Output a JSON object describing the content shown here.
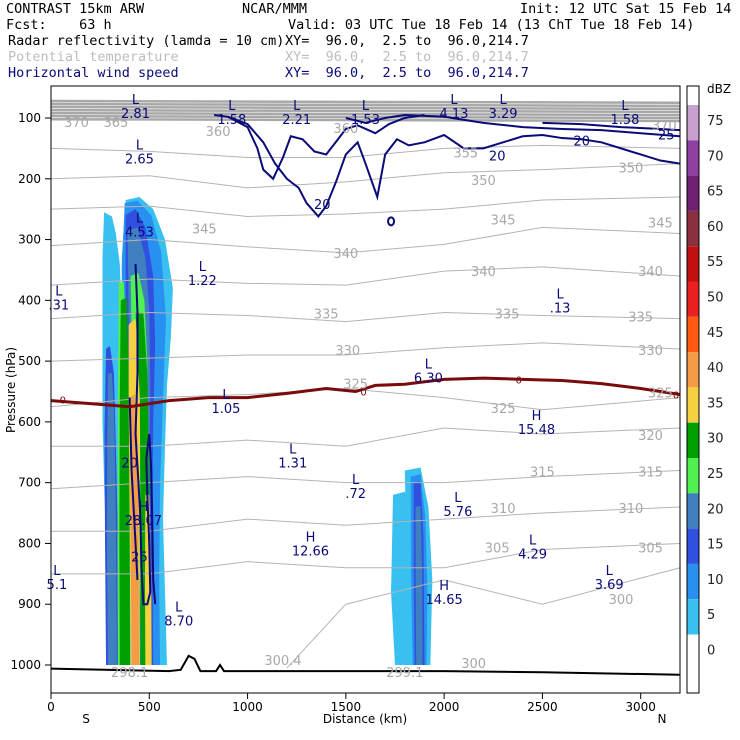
{
  "header": {
    "line1_left": "CONTRAST 15km ARW",
    "line1_mid": "NCAR/MMM",
    "line1_right": "Init: 12 UTC Sat 15 Feb 14",
    "line2_left": "Fcst:    63 h",
    "line2_right": "Valid: 03 UTC Tue 18 Feb 14 (13 ChT Tue 18 Feb 14)",
    "fields": [
      {
        "name": "Radar reflectivity (lamda = 10 cm)",
        "xy": "XY=  96.0,  2.5 to  96.0,214.7",
        "color": "#000000"
      },
      {
        "name": "Potential temperature",
        "xy": "XY=  96.0,  2.5 to  96.0,214.7",
        "color": "#bdbdbd"
      },
      {
        "name": "Horizontal wind speed",
        "xy": "XY=  96.0,  2.5 to  96.0,214.7",
        "color": "#0a0a78"
      }
    ]
  },
  "chart_data": {
    "type": "heatmap",
    "xlabel": "Distance (km)",
    "ylabel": "Pressure (hPa)",
    "x_end_labels": {
      "left": "S",
      "right": "N"
    },
    "xlim": [
      0,
      3200
    ],
    "ylim": [
      1050,
      70
    ],
    "xticks": [
      0,
      500,
      1000,
      1500,
      2000,
      2500,
      3000
    ],
    "yticks": [
      100,
      200,
      300,
      400,
      500,
      600,
      700,
      800,
      900,
      1000
    ],
    "colorbar": {
      "unit": "dBZ",
      "levels": [
        75,
        70,
        65,
        60,
        55,
        50,
        45,
        40,
        35,
        30,
        25,
        20,
        15,
        10,
        5,
        0
      ],
      "colors": [
        "#c8a0d0",
        "#9040a0",
        "#702070",
        "#8b3040",
        "#c01010",
        "#e82020",
        "#ff5a10",
        "#f59a45",
        "#f5d040",
        "#00a000",
        "#50f050",
        "#4080c0",
        "#3050e0",
        "#2890f0",
        "#38c0f0",
        "#80f0f0"
      ]
    },
    "theta_labels": [
      {
        "v": "370",
        "x": 130,
        "p": 115
      },
      {
        "v": "365",
        "x": 330,
        "p": 115
      },
      {
        "v": "360",
        "x": 850,
        "p": 130
      },
      {
        "v": "360",
        "x": 1500,
        "p": 125
      },
      {
        "v": "370",
        "x": 3120,
        "p": 120
      },
      {
        "v": "355",
        "x": 2110,
        "p": 165
      },
      {
        "v": "350",
        "x": 2200,
        "p": 210
      },
      {
        "v": "350",
        "x": 2950,
        "p": 190
      },
      {
        "v": "345",
        "x": 780,
        "p": 290
      },
      {
        "v": "345",
        "x": 2300,
        "p": 275
      },
      {
        "v": "345",
        "x": 3100,
        "p": 280
      },
      {
        "v": "340",
        "x": 1500,
        "p": 330
      },
      {
        "v": "340",
        "x": 2200,
        "p": 360
      },
      {
        "v": "340",
        "x": 3050,
        "p": 360
      },
      {
        "v": "335",
        "x": 1400,
        "p": 430
      },
      {
        "v": "335",
        "x": 2320,
        "p": 430
      },
      {
        "v": "335",
        "x": 3000,
        "p": 435
      },
      {
        "v": "330",
        "x": 1510,
        "p": 490
      },
      {
        "v": "330",
        "x": 3050,
        "p": 490
      },
      {
        "v": "325",
        "x": 1550,
        "p": 545
      },
      {
        "v": "325",
        "x": 2300,
        "p": 585
      },
      {
        "v": "325",
        "x": 3100,
        "p": 560
      },
      {
        "v": "320",
        "x": 3050,
        "p": 630
      },
      {
        "v": "315",
        "x": 2500,
        "p": 690
      },
      {
        "v": "315",
        "x": 3050,
        "p": 690
      },
      {
        "v": "310",
        "x": 2300,
        "p": 750
      },
      {
        "v": "310",
        "x": 2950,
        "p": 750
      },
      {
        "v": "305",
        "x": 2270,
        "p": 815
      },
      {
        "v": "305",
        "x": 3050,
        "p": 815
      },
      {
        "v": "300",
        "x": 2150,
        "p": 1005
      },
      {
        "v": "300",
        "x": 2900,
        "p": 900
      },
      {
        "v": "300.4",
        "x": 1180,
        "p": 1000
      },
      {
        "v": "298.1",
        "x": 400,
        "p": 1020
      },
      {
        "v": "299.1",
        "x": 1800,
        "p": 1020
      }
    ],
    "wind_labels": [
      {
        "v": "20",
        "x": 1380,
        "p": 250
      },
      {
        "v": "20",
        "x": 2270,
        "p": 170
      },
      {
        "v": "20",
        "x": 2700,
        "p": 145
      },
      {
        "v": "25",
        "x": 3130,
        "p": 135
      },
      {
        "v": "20",
        "x": 400,
        "p": 675
      },
      {
        "v": "25",
        "x": 450,
        "p": 830
      }
    ],
    "extrema": [
      {
        "kind": "L",
        "value": "2.81",
        "x": 430,
        "p": 100
      },
      {
        "kind": "L",
        "value": "1.58",
        "x": 920,
        "p": 110
      },
      {
        "kind": "L",
        "value": "2.21",
        "x": 1250,
        "p": 110
      },
      {
        "kind": "L",
        "value": "1.53",
        "x": 1600,
        "p": 110
      },
      {
        "kind": "L",
        "value": "4.13",
        "x": 2050,
        "p": 100
      },
      {
        "kind": "L",
        "value": "3.29",
        "x": 2300,
        "p": 100
      },
      {
        "kind": "L",
        "value": "1.58",
        "x": 2920,
        "p": 110
      },
      {
        "kind": "L",
        "value": "2.65",
        "x": 450,
        "p": 175
      },
      {
        "kind": "L",
        "value": "4.53",
        "x": 450,
        "p": 295
      },
      {
        "kind": "L",
        "value": "1.22",
        "x": 770,
        "p": 375
      },
      {
        "kind": "L",
        "value": ".31",
        "x": 40,
        "p": 415
      },
      {
        "kind": "L",
        "value": ".13",
        "x": 2590,
        "p": 420
      },
      {
        "kind": "L",
        "value": "6.30",
        "x": 1920,
        "p": 535
      },
      {
        "kind": "L",
        "value": "1.05",
        "x": 890,
        "p": 585
      },
      {
        "kind": "H",
        "value": "15.48",
        "x": 2470,
        "p": 620
      },
      {
        "kind": "L",
        "value": "1.31",
        "x": 1230,
        "p": 675
      },
      {
        "kind": "L",
        "value": ".72",
        "x": 1550,
        "p": 725
      },
      {
        "kind": "L",
        "value": "5.76",
        "x": 2070,
        "p": 755
      },
      {
        "kind": "H",
        "value": "28.07",
        "x": 470,
        "p": 770
      },
      {
        "kind": "H",
        "value": "12.66",
        "x": 1320,
        "p": 820
      },
      {
        "kind": "L",
        "value": "4.29",
        "x": 2450,
        "p": 825
      },
      {
        "kind": "L",
        "value": "5.1",
        "x": 30,
        "p": 875
      },
      {
        "kind": "L",
        "value": "3.69",
        "x": 2840,
        "p": 875
      },
      {
        "kind": "H",
        "value": "14.65",
        "x": 2000,
        "p": 900
      },
      {
        "kind": "L",
        "value": "8.70",
        "x": 650,
        "p": 935
      }
    ],
    "zero_label": "0",
    "freezing_level": [
      {
        "x": 0,
        "p": 565
      },
      {
        "x": 200,
        "p": 570
      },
      {
        "x": 400,
        "p": 575
      },
      {
        "x": 600,
        "p": 565
      },
      {
        "x": 800,
        "p": 560
      },
      {
        "x": 1000,
        "p": 560
      },
      {
        "x": 1200,
        "p": 553
      },
      {
        "x": 1400,
        "p": 545
      },
      {
        "x": 1550,
        "p": 550
      },
      {
        "x": 1650,
        "p": 540
      },
      {
        "x": 1800,
        "p": 538
      },
      {
        "x": 2000,
        "p": 530
      },
      {
        "x": 2200,
        "p": 528
      },
      {
        "x": 2400,
        "p": 530
      },
      {
        "x": 2600,
        "p": 532
      },
      {
        "x": 2800,
        "p": 537
      },
      {
        "x": 3000,
        "p": 545
      },
      {
        "x": 3200,
        "p": 555
      }
    ],
    "terrain": [
      {
        "x": 0,
        "p": 1006
      },
      {
        "x": 300,
        "p": 1008
      },
      {
        "x": 600,
        "p": 1010
      },
      {
        "x": 660,
        "p": 1008
      },
      {
        "x": 700,
        "p": 985
      },
      {
        "x": 730,
        "p": 990
      },
      {
        "x": 760,
        "p": 1010
      },
      {
        "x": 840,
        "p": 1010
      },
      {
        "x": 860,
        "p": 1000
      },
      {
        "x": 880,
        "p": 1010
      },
      {
        "x": 1500,
        "p": 1010
      },
      {
        "x": 2000,
        "p": 1010
      },
      {
        "x": 2500,
        "p": 1012
      },
      {
        "x": 3200,
        "p": 1016
      }
    ]
  }
}
